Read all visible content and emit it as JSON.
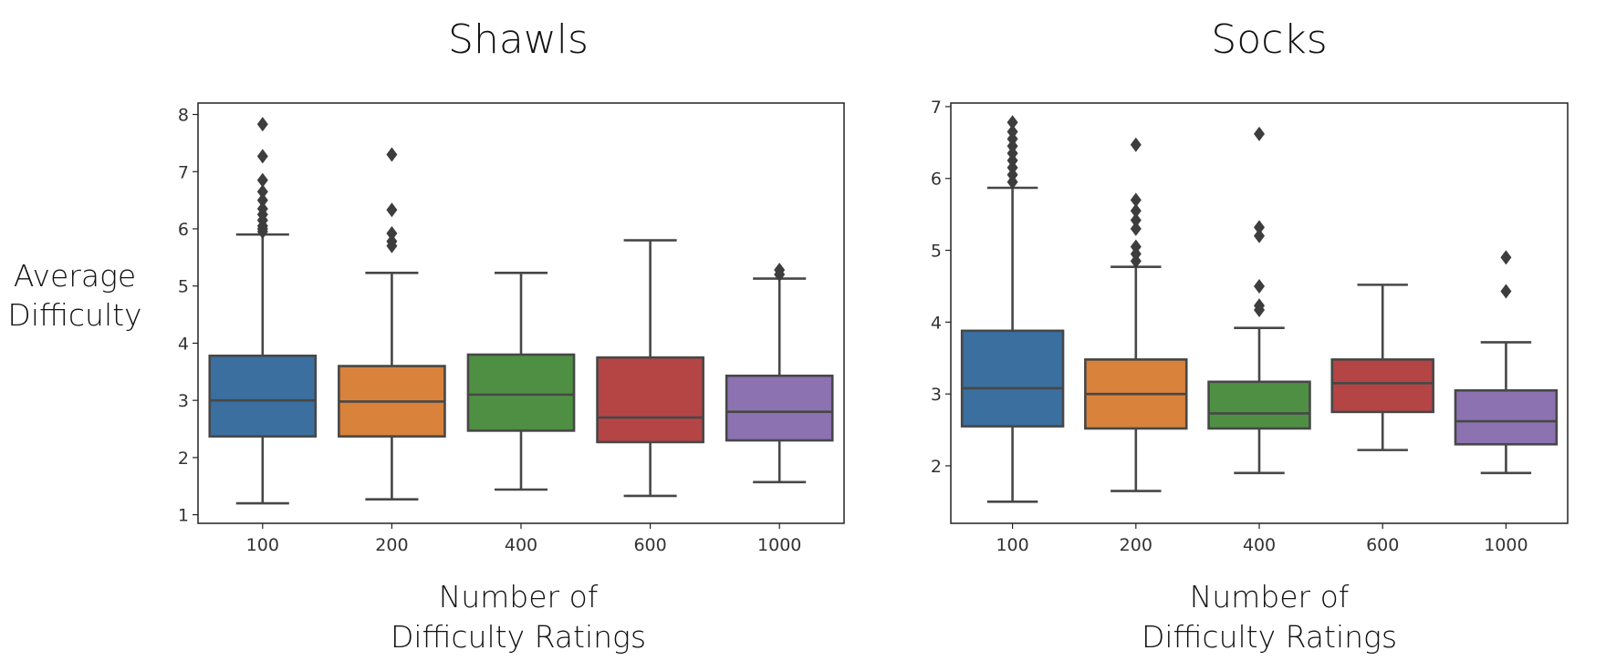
{
  "ylabel_lines": [
    "Average",
    "Difficulty"
  ],
  "chart_data": [
    {
      "type": "box",
      "title": "Shawls",
      "xlabel_lines": [
        "Number of",
        "Difficulty Ratings"
      ],
      "ylabel": "Average Difficulty",
      "categories": [
        "100",
        "200",
        "400",
        "600",
        "1000"
      ],
      "ylim": [
        0.85,
        8.2
      ],
      "yticks": [
        1,
        2,
        3,
        4,
        5,
        6,
        7,
        8
      ],
      "grid": false,
      "colors": [
        "#3a6f9f",
        "#d9823b",
        "#4f8f43",
        "#b54545",
        "#8c72b0"
      ],
      "boxes": [
        {
          "category": "100",
          "whisker_low": 1.2,
          "q1": 2.37,
          "median": 3.0,
          "q3": 3.78,
          "whisker_high": 5.9,
          "outliers": [
            5.95,
            6.0,
            6.05,
            6.15,
            6.25,
            6.35,
            6.5,
            6.65,
            6.85,
            7.27,
            7.83
          ]
        },
        {
          "category": "200",
          "whisker_low": 1.27,
          "q1": 2.37,
          "median": 2.98,
          "q3": 3.6,
          "whisker_high": 5.23,
          "outliers": [
            5.7,
            5.78,
            5.92,
            6.33,
            7.3
          ]
        },
        {
          "category": "400",
          "whisker_low": 1.44,
          "q1": 2.47,
          "median": 3.1,
          "q3": 3.8,
          "whisker_high": 5.23,
          "outliers": []
        },
        {
          "category": "600",
          "whisker_low": 1.33,
          "q1": 2.27,
          "median": 2.7,
          "q3": 3.75,
          "whisker_high": 5.8,
          "outliers": []
        },
        {
          "category": "1000",
          "whisker_low": 1.57,
          "q1": 2.3,
          "median": 2.8,
          "q3": 3.43,
          "whisker_high": 5.13,
          "outliers": [
            5.2,
            5.28
          ]
        }
      ]
    },
    {
      "type": "box",
      "title": "Socks",
      "xlabel_lines": [
        "Number of",
        "Difficulty Ratings"
      ],
      "ylabel": "Average Difficulty",
      "categories": [
        "100",
        "200",
        "400",
        "600",
        "1000"
      ],
      "ylim": [
        1.2,
        7.05
      ],
      "yticks": [
        2,
        3,
        4,
        5,
        6,
        7
      ],
      "grid": false,
      "colors": [
        "#3a6f9f",
        "#d9823b",
        "#4f8f43",
        "#b54545",
        "#8c72b0"
      ],
      "boxes": [
        {
          "category": "100",
          "whisker_low": 1.5,
          "q1": 2.55,
          "median": 3.08,
          "q3": 3.88,
          "whisker_high": 5.87,
          "outliers": [
            5.95,
            6.05,
            6.15,
            6.25,
            6.35,
            6.45,
            6.55,
            6.65,
            6.78
          ]
        },
        {
          "category": "200",
          "whisker_low": 1.65,
          "q1": 2.52,
          "median": 3.0,
          "q3": 3.48,
          "whisker_high": 4.77,
          "outliers": [
            4.85,
            4.95,
            5.05,
            5.3,
            5.42,
            5.55,
            5.7,
            6.47
          ]
        },
        {
          "category": "400",
          "whisker_low": 1.9,
          "q1": 2.52,
          "median": 2.73,
          "q3": 3.17,
          "whisker_high": 3.92,
          "outliers": [
            4.17,
            4.23,
            4.5,
            5.2,
            5.32,
            6.62
          ]
        },
        {
          "category": "600",
          "whisker_low": 2.22,
          "q1": 2.75,
          "median": 3.15,
          "q3": 3.48,
          "whisker_high": 4.52,
          "outliers": []
        },
        {
          "category": "1000",
          "whisker_low": 1.9,
          "q1": 2.3,
          "median": 2.62,
          "q3": 3.05,
          "whisker_high": 3.72,
          "outliers": [
            4.43,
            4.9
          ]
        }
      ]
    }
  ]
}
